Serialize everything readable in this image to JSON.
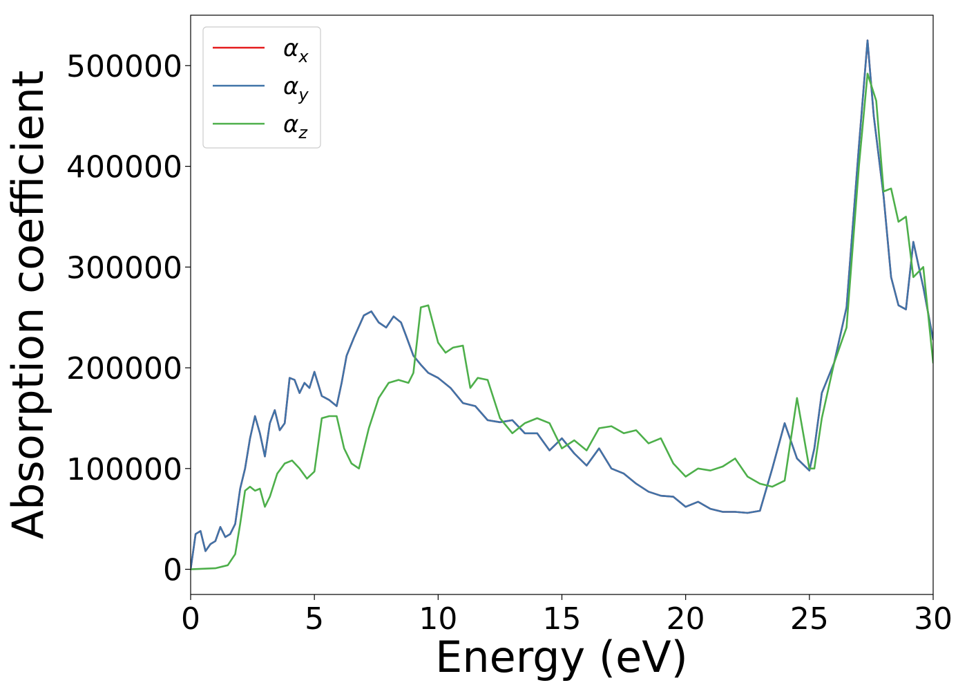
{
  "chart_data": {
    "type": "line",
    "title": "",
    "xlabel": "Energy (eV)",
    "ylabel": "Absorption coefficient",
    "xlim": [
      0,
      30
    ],
    "ylim": [
      -25000,
      550000
    ],
    "xticks": [
      0,
      5,
      10,
      15,
      20,
      25,
      30
    ],
    "yticks": [
      0,
      100000,
      200000,
      300000,
      400000,
      500000
    ],
    "grid": false,
    "legend_position": "top-left",
    "series": [
      {
        "name": "α",
        "subscript": "x",
        "color": "#e41a1c",
        "x": [
          0,
          0.2,
          0.4,
          0.6,
          0.8,
          1.0,
          1.2,
          1.4,
          1.6,
          1.8,
          2.0,
          2.2,
          2.4,
          2.6,
          2.8,
          3.0,
          3.2,
          3.4,
          3.6,
          3.8,
          4.0,
          4.2,
          4.4,
          4.6,
          4.8,
          5.0,
          5.3,
          5.6,
          5.9,
          6.1,
          6.3,
          6.6,
          7.0,
          7.3,
          7.6,
          7.9,
          8.2,
          8.5,
          8.7,
          9.0,
          9.3,
          9.6,
          10.0,
          10.5,
          11.0,
          11.5,
          12.0,
          12.5,
          13.0,
          13.5,
          14.0,
          14.5,
          15.0,
          15.5,
          16.0,
          16.5,
          17.0,
          17.5,
          18.0,
          18.5,
          19.0,
          19.5,
          20.0,
          20.5,
          21.0,
          21.5,
          22.0,
          22.5,
          23.0,
          23.5,
          24.0,
          24.5,
          25.0,
          25.2,
          25.5,
          26.0,
          26.5,
          27.0,
          27.35,
          27.6,
          28.0,
          28.3,
          28.6,
          28.9,
          29.2,
          29.6,
          30.0
        ],
        "values": [
          0,
          35000,
          38000,
          18000,
          25000,
          28000,
          42000,
          32000,
          35000,
          45000,
          80000,
          100000,
          130000,
          152000,
          135000,
          112000,
          145000,
          158000,
          138000,
          145000,
          190000,
          188000,
          175000,
          185000,
          180000,
          196000,
          172000,
          168000,
          162000,
          185000,
          212000,
          230000,
          252000,
          256000,
          245000,
          240000,
          251000,
          245000,
          232000,
          212000,
          203000,
          195000,
          190000,
          180000,
          165000,
          162000,
          148000,
          146000,
          148000,
          135000,
          135000,
          118000,
          130000,
          115000,
          103000,
          120000,
          100000,
          95000,
          85000,
          77000,
          73000,
          72000,
          62000,
          67000,
          60000,
          57000,
          57000,
          56000,
          58000,
          100000,
          145000,
          110000,
          98000,
          120000,
          175000,
          205000,
          260000,
          420000,
          525000,
          450000,
          370000,
          290000,
          262000,
          258000,
          325000,
          280000,
          228000
        ]
      },
      {
        "name": "α",
        "subscript": "y",
        "color": "#3f73a8",
        "x": [
          0,
          0.2,
          0.4,
          0.6,
          0.8,
          1.0,
          1.2,
          1.4,
          1.6,
          1.8,
          2.0,
          2.2,
          2.4,
          2.6,
          2.8,
          3.0,
          3.2,
          3.4,
          3.6,
          3.8,
          4.0,
          4.2,
          4.4,
          4.6,
          4.8,
          5.0,
          5.3,
          5.6,
          5.9,
          6.1,
          6.3,
          6.6,
          7.0,
          7.3,
          7.6,
          7.9,
          8.2,
          8.5,
          8.7,
          9.0,
          9.3,
          9.6,
          10.0,
          10.5,
          11.0,
          11.5,
          12.0,
          12.5,
          13.0,
          13.5,
          14.0,
          14.5,
          15.0,
          15.5,
          16.0,
          16.5,
          17.0,
          17.5,
          18.0,
          18.5,
          19.0,
          19.5,
          20.0,
          20.5,
          21.0,
          21.5,
          22.0,
          22.5,
          23.0,
          23.5,
          24.0,
          24.5,
          25.0,
          25.2,
          25.5,
          26.0,
          26.5,
          27.0,
          27.35,
          27.6,
          28.0,
          28.3,
          28.6,
          28.9,
          29.2,
          29.6,
          30.0
        ],
        "values": [
          0,
          35000,
          38000,
          18000,
          25000,
          28000,
          42000,
          32000,
          35000,
          45000,
          80000,
          100000,
          130000,
          152000,
          135000,
          112000,
          145000,
          158000,
          138000,
          145000,
          190000,
          188000,
          175000,
          185000,
          180000,
          196000,
          172000,
          168000,
          162000,
          185000,
          212000,
          230000,
          252000,
          256000,
          245000,
          240000,
          251000,
          245000,
          232000,
          212000,
          203000,
          195000,
          190000,
          180000,
          165000,
          162000,
          148000,
          146000,
          148000,
          135000,
          135000,
          118000,
          130000,
          115000,
          103000,
          120000,
          100000,
          95000,
          85000,
          77000,
          73000,
          72000,
          62000,
          67000,
          60000,
          57000,
          57000,
          56000,
          58000,
          100000,
          145000,
          110000,
          98000,
          120000,
          175000,
          205000,
          260000,
          420000,
          525000,
          450000,
          370000,
          290000,
          262000,
          258000,
          325000,
          280000,
          228000
        ]
      },
      {
        "name": "α",
        "subscript": "z",
        "color": "#4daf4a",
        "x": [
          0,
          0.5,
          1.0,
          1.5,
          1.8,
          2.0,
          2.2,
          2.4,
          2.6,
          2.8,
          3.0,
          3.2,
          3.5,
          3.8,
          4.1,
          4.4,
          4.7,
          5.0,
          5.3,
          5.6,
          5.9,
          6.2,
          6.5,
          6.8,
          7.2,
          7.6,
          8.0,
          8.4,
          8.8,
          9.0,
          9.3,
          9.6,
          10.0,
          10.3,
          10.6,
          11.0,
          11.3,
          11.6,
          12.0,
          12.5,
          13.0,
          13.5,
          14.0,
          14.5,
          15.0,
          15.5,
          16.0,
          16.5,
          17.0,
          17.5,
          18.0,
          18.5,
          19.0,
          19.5,
          20.0,
          20.5,
          21.0,
          21.5,
          22.0,
          22.5,
          23.0,
          23.5,
          24.0,
          24.5,
          25.0,
          25.2,
          25.5,
          26.0,
          26.5,
          27.0,
          27.35,
          27.7,
          28.0,
          28.3,
          28.6,
          28.9,
          29.2,
          29.6,
          30.0
        ],
        "values": [
          0,
          500,
          1000,
          4000,
          15000,
          45000,
          78000,
          82000,
          78000,
          80000,
          62000,
          72000,
          95000,
          105000,
          108000,
          100000,
          90000,
          97000,
          150000,
          152000,
          152000,
          120000,
          105000,
          100000,
          140000,
          170000,
          185000,
          188000,
          185000,
          195000,
          260000,
          262000,
          225000,
          215000,
          220000,
          222000,
          180000,
          190000,
          188000,
          150000,
          135000,
          145000,
          150000,
          145000,
          120000,
          128000,
          118000,
          140000,
          142000,
          135000,
          138000,
          125000,
          130000,
          105000,
          92000,
          100000,
          98000,
          102000,
          110000,
          92000,
          85000,
          82000,
          88000,
          170000,
          100000,
          100000,
          150000,
          205000,
          240000,
          400000,
          492000,
          465000,
          375000,
          378000,
          345000,
          350000,
          290000,
          300000,
          205000
        ]
      }
    ]
  }
}
